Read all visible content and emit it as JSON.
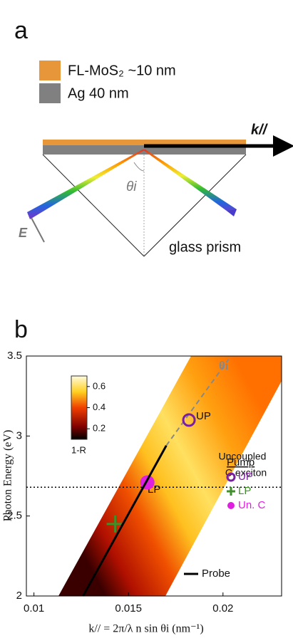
{
  "panel_a": {
    "label": "a",
    "legend": [
      "FL-MoS₂ ~10 nm",
      "Ag 40 nm"
    ],
    "k_label": "k//",
    "angle_label": "θi",
    "field_label": "E",
    "prism_label": "glass prism"
  },
  "chart_data": {
    "type": "scatter",
    "panel_label": "b",
    "x_label": "k// = 2π/λ n sin θi  (nm⁻¹)",
    "y_label": "Photon Energy (eV)",
    "xlim": [
      0.0096,
      0.0231
    ],
    "xticks": [
      0.01,
      0.015,
      0.02
    ],
    "ylim": [
      2,
      3.5
    ],
    "yticks": [
      2,
      2.5,
      3,
      3.5
    ],
    "colorbar": {
      "label": "1-R",
      "clim": [
        0.1,
        0.7
      ],
      "ticks": [
        0.2,
        0.4,
        0.6
      ]
    },
    "legend_title": "Pump",
    "series": [
      {
        "name": "UP",
        "color": "#7b1fa2",
        "marker": "open-circle",
        "x": [
          0.0182
        ],
        "values": [
          3.1
        ]
      },
      {
        "name": "LP",
        "color": "#3f8f2a",
        "marker": "plus",
        "x": [
          0.0143
        ],
        "values": [
          2.45
        ]
      },
      {
        "name": "Un. C",
        "color": "#e020e0",
        "marker": "filled-circle",
        "x": [
          0.016
        ],
        "values": [
          2.71
        ]
      },
      {
        "name": "Probe",
        "color": "#000000",
        "marker": "line",
        "x": [
          0.0126,
          0.017
        ],
        "values": [
          2,
          2.94
        ]
      }
    ],
    "angle_line": {
      "label": "θi",
      "x": [
        0.017,
        0.0203
      ],
      "values": [
        2.94,
        3.48
      ]
    },
    "exciton_line": {
      "value": 2.68,
      "label": [
        "Uncoupled",
        "C exciton"
      ]
    },
    "annotations": [
      "UP",
      "LP"
    ]
  }
}
